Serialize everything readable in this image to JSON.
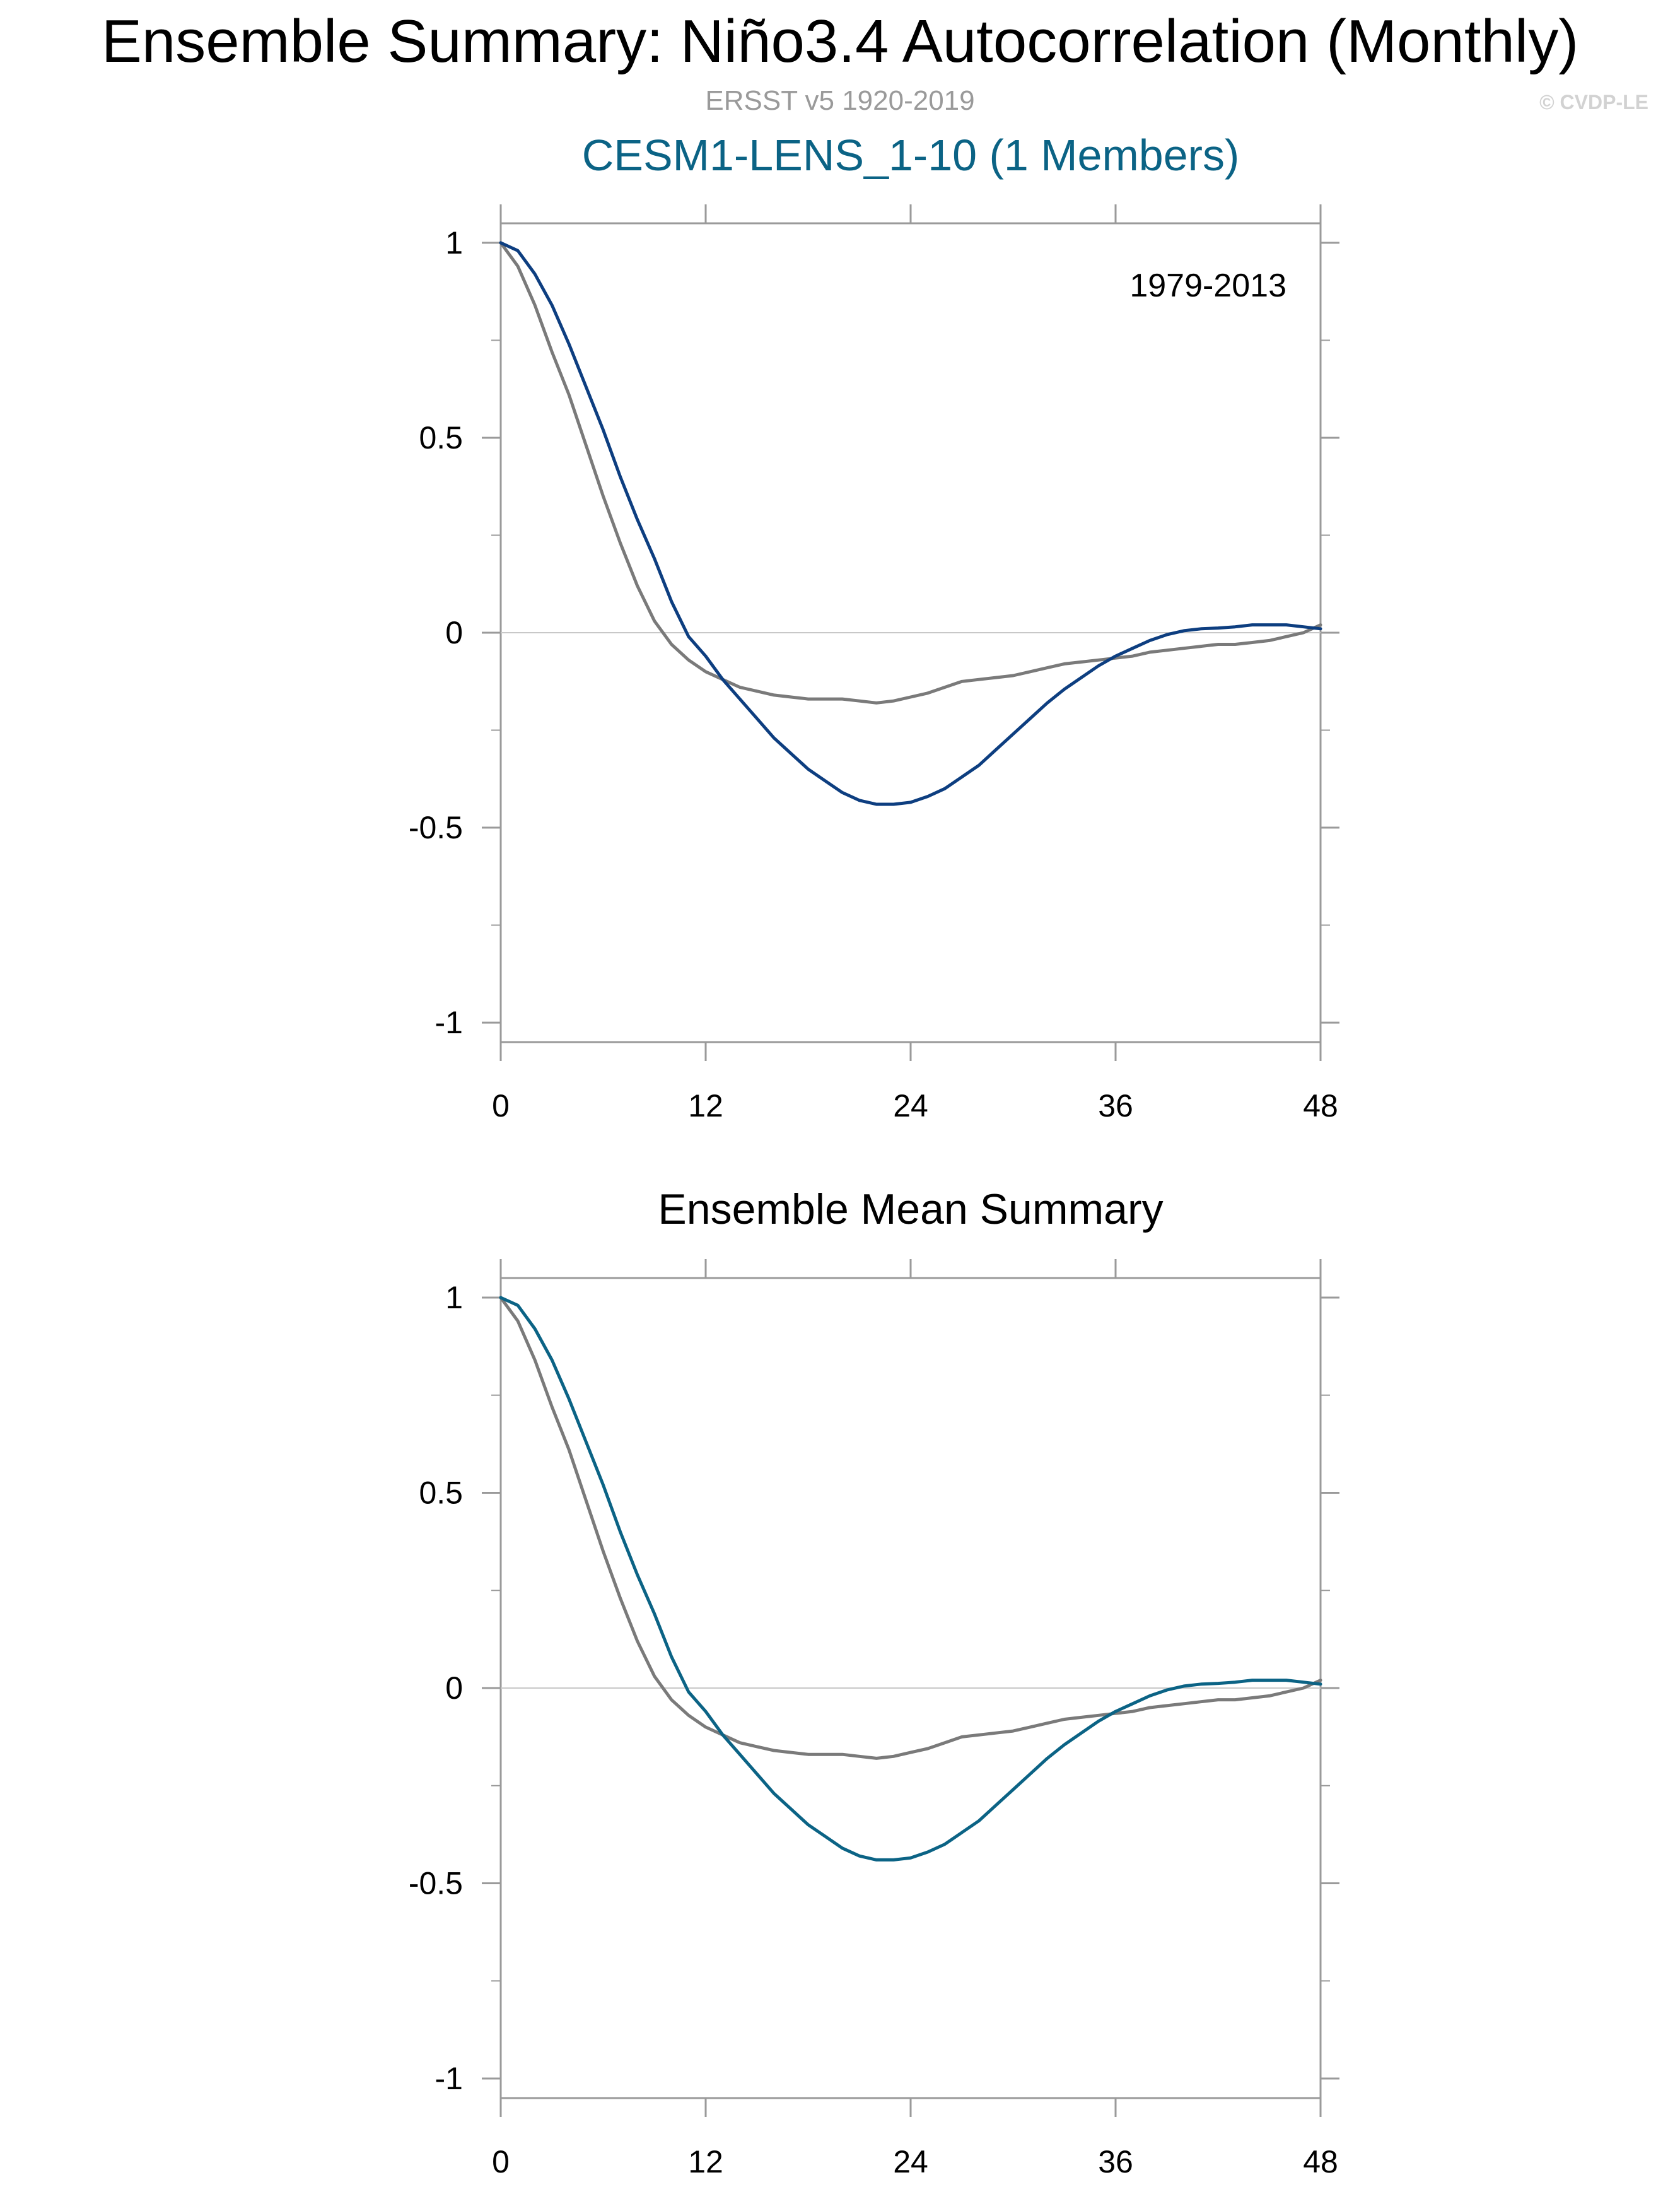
{
  "header": {
    "title": "Ensemble Summary: Niño3.4 Autocorrelation (Monthly)",
    "subtitle": "ERSST v5 1920-2019",
    "credit": "© CVDP-LE"
  },
  "colors": {
    "observations": "#7a7a7a",
    "member": "#0d3e80",
    "ensemble_mean": "#0b6385",
    "panel_title": "#0b6385",
    "zero_line": "#c8c8c8",
    "axis": "#9a9a9a"
  },
  "chart_data": [
    {
      "type": "line",
      "title": "CESM1-LENS_1-10 (1 Members)",
      "annotation": "1979-2013",
      "xlabel": "",
      "ylabel": "",
      "xlim": [
        0,
        48
      ],
      "ylim": [
        -1.05,
        1.05
      ],
      "xticks": [
        0,
        12,
        24,
        36,
        48
      ],
      "xticklabels": [
        "0",
        "12",
        "24",
        "36",
        "48"
      ],
      "yticks": [
        1,
        0.5,
        0,
        -0.5,
        -1
      ],
      "yticklabels": [
        "1",
        "0.5",
        "0",
        "-0.5",
        "-1"
      ],
      "x": [
        0,
        1,
        2,
        3,
        4,
        5,
        6,
        7,
        8,
        9,
        10,
        11,
        12,
        13,
        14,
        15,
        16,
        17,
        18,
        19,
        20,
        21,
        22,
        23,
        24,
        25,
        26,
        27,
        28,
        29,
        30,
        31,
        32,
        33,
        34,
        35,
        36,
        37,
        38,
        39,
        40,
        41,
        42,
        43,
        44,
        45,
        46,
        47,
        48
      ],
      "series": [
        {
          "color_key": "observations",
          "values": [
            1.0,
            0.94,
            0.84,
            0.72,
            0.61,
            0.48,
            0.35,
            0.23,
            0.12,
            0.03,
            -0.03,
            -0.07,
            -0.1,
            -0.12,
            -0.14,
            -0.15,
            -0.16,
            -0.165,
            -0.17,
            -0.17,
            -0.17,
            -0.175,
            -0.18,
            -0.175,
            -0.165,
            -0.155,
            -0.14,
            -0.125,
            -0.12,
            -0.115,
            -0.11,
            -0.1,
            -0.09,
            -0.08,
            -0.075,
            -0.07,
            -0.065,
            -0.06,
            -0.05,
            -0.045,
            -0.04,
            -0.035,
            -0.03,
            -0.03,
            -0.025,
            -0.02,
            -0.01,
            0.0,
            0.02
          ]
        },
        {
          "color_key": "member",
          "values": [
            1.0,
            0.98,
            0.92,
            0.84,
            0.74,
            0.63,
            0.52,
            0.4,
            0.29,
            0.19,
            0.08,
            -0.01,
            -0.06,
            -0.12,
            -0.17,
            -0.22,
            -0.27,
            -0.31,
            -0.35,
            -0.38,
            -0.41,
            -0.43,
            -0.44,
            -0.44,
            -0.435,
            -0.42,
            -0.4,
            -0.37,
            -0.34,
            -0.3,
            -0.26,
            -0.22,
            -0.18,
            -0.145,
            -0.115,
            -0.085,
            -0.06,
            -0.04,
            -0.02,
            -0.005,
            0.005,
            0.01,
            0.012,
            0.015,
            0.02,
            0.02,
            0.02,
            0.015,
            0.01
          ]
        }
      ]
    },
    {
      "type": "line",
      "title": "Ensemble Mean Summary",
      "xlabel": "",
      "ylabel": "",
      "xlim": [
        0,
        48
      ],
      "ylim": [
        -1.05,
        1.05
      ],
      "xticks": [
        0,
        12,
        24,
        36,
        48
      ],
      "xticklabels": [
        "0",
        "12",
        "24",
        "36",
        "48"
      ],
      "yticks": [
        1,
        0.5,
        0,
        -0.5,
        -1
      ],
      "yticklabels": [
        "1",
        "0.5",
        "0",
        "-0.5",
        "-1"
      ],
      "x": [
        0,
        1,
        2,
        3,
        4,
        5,
        6,
        7,
        8,
        9,
        10,
        11,
        12,
        13,
        14,
        15,
        16,
        17,
        18,
        19,
        20,
        21,
        22,
        23,
        24,
        25,
        26,
        27,
        28,
        29,
        30,
        31,
        32,
        33,
        34,
        35,
        36,
        37,
        38,
        39,
        40,
        41,
        42,
        43,
        44,
        45,
        46,
        47,
        48
      ],
      "series": [
        {
          "color_key": "observations",
          "values": [
            1.0,
            0.94,
            0.84,
            0.72,
            0.61,
            0.48,
            0.35,
            0.23,
            0.12,
            0.03,
            -0.03,
            -0.07,
            -0.1,
            -0.12,
            -0.14,
            -0.15,
            -0.16,
            -0.165,
            -0.17,
            -0.17,
            -0.17,
            -0.175,
            -0.18,
            -0.175,
            -0.165,
            -0.155,
            -0.14,
            -0.125,
            -0.12,
            -0.115,
            -0.11,
            -0.1,
            -0.09,
            -0.08,
            -0.075,
            -0.07,
            -0.065,
            -0.06,
            -0.05,
            -0.045,
            -0.04,
            -0.035,
            -0.03,
            -0.03,
            -0.025,
            -0.02,
            -0.01,
            0.0,
            0.02
          ]
        },
        {
          "color_key": "ensemble_mean",
          "values": [
            1.0,
            0.98,
            0.92,
            0.84,
            0.74,
            0.63,
            0.52,
            0.4,
            0.29,
            0.19,
            0.08,
            -0.01,
            -0.06,
            -0.12,
            -0.17,
            -0.22,
            -0.27,
            -0.31,
            -0.35,
            -0.38,
            -0.41,
            -0.43,
            -0.44,
            -0.44,
            -0.435,
            -0.42,
            -0.4,
            -0.37,
            -0.34,
            -0.3,
            -0.26,
            -0.22,
            -0.18,
            -0.145,
            -0.115,
            -0.085,
            -0.06,
            -0.04,
            -0.02,
            -0.005,
            0.005,
            0.01,
            0.012,
            0.015,
            0.02,
            0.02,
            0.02,
            0.015,
            0.01
          ]
        }
      ]
    }
  ]
}
